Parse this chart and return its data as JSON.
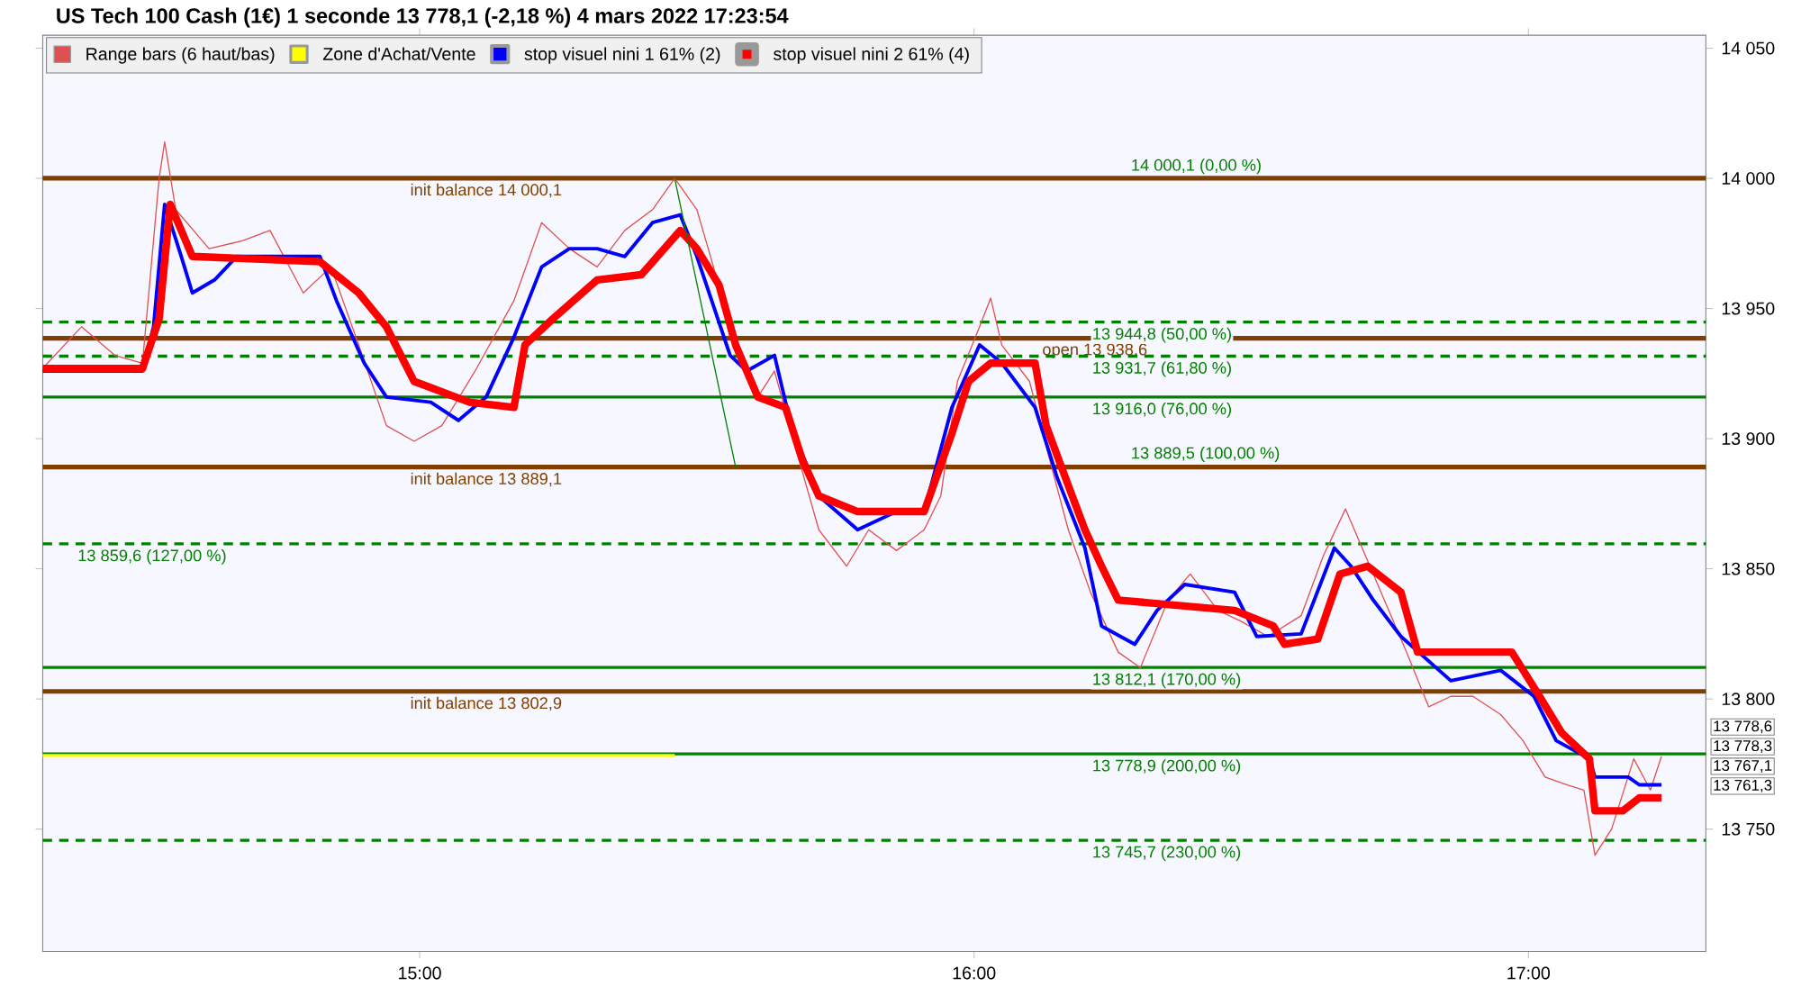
{
  "chart_data": {
    "type": "line",
    "title": "US Tech 100 Cash (1€) 1 seconde 13 778,1 (-2,18 %) 4 mars 2022 17:23:54",
    "xlim": [
      14.32,
      17.32
    ],
    "xticks": [
      {
        "value": 15,
        "label": "15:00"
      },
      {
        "value": 16,
        "label": "16:00"
      },
      {
        "value": 17,
        "label": "17:00"
      }
    ],
    "ylim": [
      13703,
      14055
    ],
    "yticks": [
      {
        "value": 13750,
        "label": "13 750"
      },
      {
        "value": 13800,
        "label": "13 800"
      },
      {
        "value": 13850,
        "label": "13 850"
      },
      {
        "value": 13900,
        "label": "13 900"
      },
      {
        "value": 13950,
        "label": "13 950"
      },
      {
        "value": 14000,
        "label": "14 000"
      },
      {
        "value": 14050,
        "label": "14 050"
      }
    ],
    "grid": false,
    "legend": "top left",
    "series": [
      {
        "name": "Range bars (6 haut/bas)",
        "color": "#e05050",
        "x": [
          14.32,
          14.39,
          14.45,
          14.5,
          14.53,
          14.54,
          14.56,
          14.62,
          14.68,
          14.73,
          14.79,
          14.84,
          14.89,
          14.94,
          14.99,
          15.04,
          15.1,
          15.17,
          15.22,
          15.27,
          15.32,
          15.37,
          15.42,
          15.46,
          15.5,
          15.53,
          15.56,
          15.61,
          15.64,
          15.68,
          15.72,
          15.77,
          15.81,
          15.86,
          15.91,
          15.94,
          15.97,
          16.01,
          16.03,
          16.05,
          16.1,
          16.14,
          16.17,
          16.21,
          16.26,
          16.3,
          16.35,
          16.39,
          16.44,
          16.48,
          16.53,
          16.59,
          16.63,
          16.67,
          16.7,
          16.74,
          16.78,
          16.82,
          16.86,
          16.9,
          16.95,
          16.99,
          17.03,
          17.07,
          17.1,
          17.12,
          17.15,
          17.19,
          17.22,
          17.24
        ],
        "values": [
          13927,
          13943,
          13932,
          13929,
          14000,
          14014,
          13988,
          13973,
          13976,
          13980,
          13956,
          13966,
          13936,
          13905,
          13899,
          13905,
          13926,
          13953,
          13983,
          13973,
          13966,
          13980,
          13988,
          14000,
          13988,
          13966,
          13939,
          13916,
          13926,
          13895,
          13865,
          13851,
          13865,
          13857,
          13865,
          13878,
          13922,
          13943,
          13954,
          13936,
          13922,
          13889,
          13865,
          13841,
          13818,
          13812,
          13838,
          13848,
          13834,
          13830,
          13824,
          13832,
          13855,
          13873,
          13858,
          13838,
          13818,
          13797,
          13801,
          13801,
          13794,
          13784,
          13770,
          13767,
          13765,
          13740,
          13750,
          13777,
          13765,
          13778
        ]
      },
      {
        "name": "Zone d'Achat/Vente",
        "color": "#ffff00",
        "x": [
          14.32,
          15.46
        ],
        "values": [
          13778.3,
          13778.3
        ]
      },
      {
        "name": "stop visuel nini 1 61% (2)",
        "color": "#0000ff",
        "x": [
          14.32,
          14.5,
          14.52,
          14.54,
          14.57,
          14.59,
          14.63,
          14.67,
          14.82,
          14.85,
          14.9,
          14.94,
          15.02,
          15.07,
          15.12,
          15.17,
          15.22,
          15.27,
          15.32,
          15.37,
          15.42,
          15.47,
          15.5,
          15.56,
          15.59,
          15.64,
          15.67,
          15.72,
          15.79,
          15.86,
          15.91,
          15.96,
          16.01,
          16.05,
          16.11,
          16.15,
          16.2,
          16.23,
          16.29,
          16.33,
          16.38,
          16.47,
          16.51,
          16.59,
          16.65,
          16.68,
          16.72,
          16.77,
          16.86,
          16.95,
          17.01,
          17.05,
          17.11,
          17.12,
          17.18,
          17.2,
          17.24
        ],
        "values": [
          13926,
          13926,
          13943,
          13990,
          13970,
          13956,
          13961,
          13970,
          13970,
          13953,
          13929,
          13916,
          13914,
          13907,
          13916,
          13939,
          13966,
          13973,
          13973,
          13970,
          13983,
          13986,
          13970,
          13932,
          13926,
          13932,
          13905,
          13878,
          13865,
          13872,
          13872,
          13912,
          13936,
          13929,
          13912,
          13885,
          13858,
          13828,
          13821,
          13834,
          13844,
          13841,
          13824,
          13825,
          13858,
          13851,
          13838,
          13824,
          13807,
          13811,
          13801,
          13784,
          13777,
          13770,
          13770,
          13767,
          13767
        ]
      },
      {
        "name": "stop visuel nini 2 61% (4)",
        "color": "#ff0000",
        "x": [
          14.32,
          14.5,
          14.53,
          14.55,
          14.59,
          14.82,
          14.89,
          14.94,
          14.99,
          15.09,
          15.17,
          15.19,
          15.24,
          15.32,
          15.4,
          15.47,
          15.5,
          15.54,
          15.57,
          15.61,
          15.66,
          15.69,
          15.72,
          15.79,
          15.91,
          15.96,
          15.99,
          16.03,
          16.11,
          16.13,
          16.17,
          16.2,
          16.23,
          16.26,
          16.47,
          16.54,
          16.56,
          16.62,
          16.66,
          16.71,
          16.77,
          16.8,
          16.97,
          17.02,
          17.06,
          17.11,
          17.12,
          17.17,
          17.2,
          17.24
        ],
        "values": [
          13927,
          13927,
          13946,
          13990,
          13970,
          13968,
          13956,
          13943,
          13922,
          13914,
          13912,
          13936,
          13946,
          13961,
          13963,
          13980,
          13973,
          13959,
          13936,
          13916,
          13912,
          13892,
          13878,
          13872,
          13872,
          13902,
          13922,
          13929,
          13929,
          13905,
          13882,
          13865,
          13851,
          13838,
          13834,
          13828,
          13821,
          13823,
          13848,
          13851,
          13841,
          13818,
          13818,
          13801,
          13787,
          13777,
          13757,
          13757,
          13762,
          13762
        ]
      },
      {
        "color": "#008000",
        "x": [
          15.46,
          15.57
        ],
        "values": [
          14000,
          13889
        ]
      }
    ],
    "ref_lines": [
      {
        "axis": "y",
        "value": 14000.1,
        "label": "init balance 14 000,1",
        "color": "#7f3f00",
        "line_style": "solid"
      },
      {
        "axis": "y",
        "value": 13938.6,
        "label": "open 13 938,6",
        "color": "#7f3f00",
        "line_style": "solid"
      },
      {
        "axis": "y",
        "value": 13889.1,
        "label": "init balance 13 889,1",
        "color": "#7f3f00",
        "line_style": "solid"
      },
      {
        "axis": "y",
        "value": 13802.9,
        "label": "init balance 13 802,9",
        "color": "#7f3f00",
        "line_style": "solid"
      },
      {
        "axis": "y",
        "value": 13944.8,
        "label": "13 944,8 (50,00 %)",
        "color": "#008000",
        "line_style": "dashed"
      },
      {
        "axis": "y",
        "value": 13931.7,
        "label": "13 931,7 (61,80 %)",
        "color": "#008000",
        "line_style": "dashed"
      },
      {
        "axis": "y",
        "value": 13916.0,
        "label": "13 916,0 (76,00 %)",
        "color": "#008000",
        "line_style": "solid"
      },
      {
        "axis": "y",
        "value": 13859.6,
        "label": "13 859,6 (127,00 %)",
        "color": "#008000",
        "line_style": "dashed"
      },
      {
        "axis": "y",
        "value": 13812.1,
        "label": "13 812,1 (170,00 %)",
        "color": "#008000",
        "line_style": "solid"
      },
      {
        "axis": "y",
        "value": 13778.9,
        "label": "13 778,9 (200,00 %)",
        "color": "#008000",
        "line_style": "solid"
      },
      {
        "axis": "y",
        "value": 13745.7,
        "label": "13 745,7 (230,00 %)",
        "color": "#008000",
        "line_style": "dashed"
      }
    ],
    "annotations": [
      {
        "text": "14 000,1 (0,00 %)",
        "x": 16.28,
        "y": 14000.1
      },
      {
        "text": "13 889,5 (100,00 %)",
        "x": 16.28,
        "y": 13889.5
      },
      "13 778,6",
      "13 778,3",
      "13 767,1",
      "13 761,3"
    ]
  }
}
